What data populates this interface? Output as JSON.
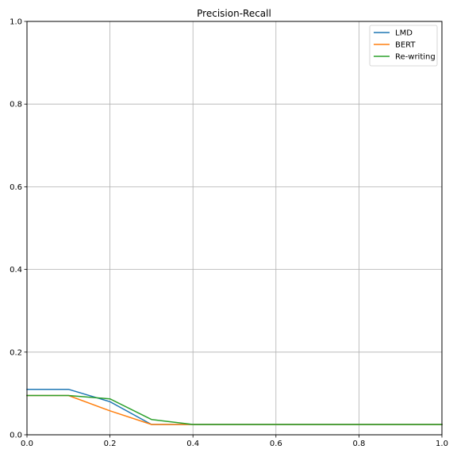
{
  "chart_data": {
    "type": "line",
    "title": "Precision-Recall",
    "xlabel": "",
    "ylabel": "",
    "xlim": [
      0,
      1
    ],
    "ylim": [
      0,
      1
    ],
    "x_ticks": [
      0.0,
      0.2,
      0.4,
      0.6,
      0.8,
      1.0
    ],
    "x_tick_labels": [
      "0.0",
      "0.2",
      "0.4",
      "0.6",
      "0.8",
      "1.0"
    ],
    "y_ticks": [
      0.0,
      0.2,
      0.4,
      0.6,
      0.8,
      1.0
    ],
    "y_tick_labels": [
      "0.0",
      "0.2",
      "0.4",
      "0.6",
      "0.8",
      "1.0"
    ],
    "grid": true,
    "legend_position": "top-right",
    "x": [
      0.0,
      0.1,
      0.2,
      0.3,
      0.4,
      0.5,
      0.6,
      0.7,
      0.8,
      0.9,
      1.0
    ],
    "series": [
      {
        "name": "LMD",
        "color": "#1f77b4",
        "values": [
          0.11,
          0.11,
          0.08,
          0.025,
          0.025,
          0.025,
          0.025,
          0.025,
          0.025,
          0.025,
          0.025
        ]
      },
      {
        "name": "BERT",
        "color": "#ff7f0e",
        "values": [
          0.095,
          0.095,
          0.058,
          0.025,
          0.025,
          0.025,
          0.025,
          0.025,
          0.025,
          0.025,
          0.025
        ]
      },
      {
        "name": "Re-writing",
        "color": "#2ca02c",
        "values": [
          0.095,
          0.095,
          0.087,
          0.037,
          0.025,
          0.025,
          0.025,
          0.025,
          0.025,
          0.025,
          0.025
        ]
      }
    ]
  }
}
